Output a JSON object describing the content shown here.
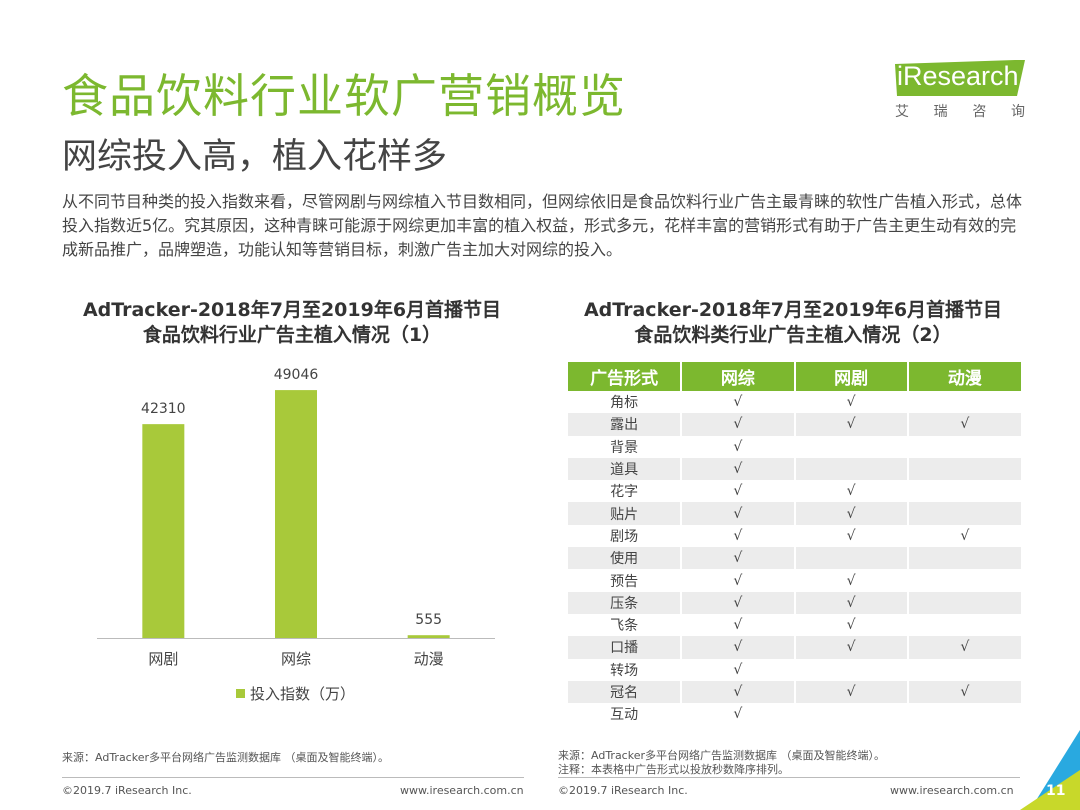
{
  "header": {
    "title": "食品饮料行业软广营销概览",
    "subtitle": "网综投入高，植入花样多"
  },
  "logo": {
    "word": "Research",
    "i_letter": "i",
    "cn_chars": [
      "艾",
      "瑞",
      "咨",
      "询"
    ],
    "color": "#7cb82f"
  },
  "description": "从不同节目种类的投入指数来看，尽管网剧与网综植入节目数相同，但网综依旧是食品饮料行业广告主最青睐的软性广告植入形式，总体投入指数近5亿。究其原因，这种青睐可能源于网综更加丰富的植入权益，形式多元，花样丰富的营销形式有助于广告主更生动有效的完成新品推广，品牌塑造，功能认知等营销目标，刺激广告主加大对网综的投入。",
  "chart_data": [
    {
      "type": "bar",
      "title": "AdTracker-2018年7月至2019年6月首播节目食品饮料行业广告主植入情况（1）",
      "title_lines": [
        "AdTracker-2018年7月至2019年6月首播节目",
        "食品饮料行业广告主植入情况（1）"
      ],
      "categories": [
        "网剧",
        "网综",
        "动漫"
      ],
      "series": [
        {
          "name": "投入指数（万）",
          "values": [
            42310,
            49046,
            555
          ],
          "color": "#a8c93a"
        }
      ],
      "ylim": [
        0,
        55000
      ],
      "grid": false,
      "legend": "bottom"
    },
    {
      "type": "table",
      "title": "AdTracker-2018年7月至2019年6月首播节目食品饮料类行业广告主植入情况（2）",
      "title_lines": [
        "AdTracker-2018年7月至2019年6月首播节目",
        "食品饮料类行业广告主植入情况（2）"
      ],
      "columns": [
        "广告形式",
        "网综",
        "网剧",
        "动漫"
      ],
      "rows": [
        [
          "角标",
          "√",
          "√",
          ""
        ],
        [
          "露出",
          "√",
          "√",
          "√"
        ],
        [
          "背景",
          "√",
          "",
          ""
        ],
        [
          "道具",
          "√",
          "",
          ""
        ],
        [
          "花字",
          "√",
          "√",
          ""
        ],
        [
          "贴片",
          "√",
          "√",
          ""
        ],
        [
          "剧场",
          "√",
          "√",
          "√"
        ],
        [
          "使用",
          "√",
          "",
          ""
        ],
        [
          "预告",
          "√",
          "√",
          ""
        ],
        [
          "压条",
          "√",
          "√",
          ""
        ],
        [
          "飞条",
          "√",
          "√",
          ""
        ],
        [
          "口播",
          "√",
          "√",
          "√"
        ],
        [
          "转场",
          "√",
          "",
          ""
        ],
        [
          "冠名",
          "√",
          "√",
          "√"
        ],
        [
          "互动",
          "√",
          "",
          ""
        ]
      ]
    }
  ],
  "sources": {
    "left": "来源：AdTracker多平台网络广告监测数据库 （桌面及智能终端）。",
    "right_source": "来源：AdTracker多平台网络广告监测数据库 （桌面及智能终端）。",
    "right_note": "注释：本表格中广告形式以投放秒数降序排列。"
  },
  "footer": {
    "copyright_left": "©2019.7 iResearch Inc.",
    "url_left": "www.iresearch.com.cn",
    "copyright_right": "©2019.7 iResearch Inc.",
    "url_right": "www.iresearch.com.cn",
    "page_number": "11"
  },
  "colors": {
    "accent_green": "#7cb82f",
    "bar_green": "#a8c93a",
    "corner_blue": "#29a9e0",
    "corner_yellow": "#c8d82a"
  }
}
